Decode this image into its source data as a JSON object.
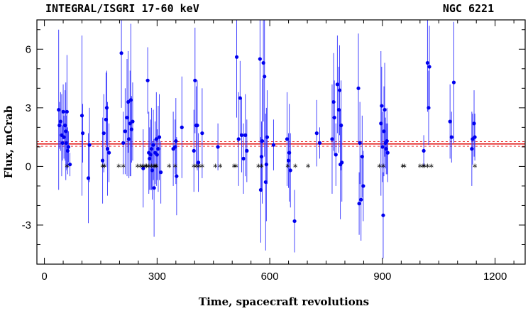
{
  "chart_data": {
    "type": "scatter",
    "title_left": "INTEGRAL/ISGRI 17-60 keV",
    "title_right": "NGC 6221",
    "xlabel": "Time, spacecraft revolutions",
    "ylabel": "Flux, mCrab",
    "xlim": [
      -20,
      1280
    ],
    "ylim": [
      -5,
      7.5
    ],
    "xticks": [
      0,
      300,
      600,
      900,
      1200
    ],
    "yticks": [
      -3,
      0,
      3,
      6
    ],
    "mean_flux": 1.15,
    "mean_flux_band": [
      1.03,
      1.27
    ],
    "colors": {
      "points": "#0000ee",
      "errorbars": "#3333ff",
      "mean_line": "#e00000",
      "markers": "#000000"
    },
    "series": [
      {
        "type": "errorbar",
        "points": [
          {
            "x": 38,
            "y": 2.9,
            "err": 4.1
          },
          {
            "x": 40,
            "y": 2.1,
            "err": 1.2
          },
          {
            "x": 43,
            "y": 2.3,
            "err": 1.5
          },
          {
            "x": 46,
            "y": 1.6,
            "err": 2.1
          },
          {
            "x": 48,
            "y": 1.2,
            "err": 0.9
          },
          {
            "x": 50,
            "y": 2.8,
            "err": 1.4
          },
          {
            "x": 52,
            "y": 1.5,
            "err": 1.1
          },
          {
            "x": 55,
            "y": 2.1,
            "err": 1.8
          },
          {
            "x": 57,
            "y": 1.8,
            "err": 2.5
          },
          {
            "x": 58,
            "y": 1.2,
            "err": 1.4
          },
          {
            "x": 60,
            "y": 2.8,
            "err": 2.9
          },
          {
            "x": 62,
            "y": 0.8,
            "err": 1.2
          },
          {
            "x": 64,
            "y": 1.0,
            "err": 0.8
          },
          {
            "x": 68,
            "y": 0.1,
            "err": 0.6
          },
          {
            "x": 100,
            "y": 2.6,
            "err": 4.1
          },
          {
            "x": 102,
            "y": 1.7,
            "err": 1.5
          },
          {
            "x": 117,
            "y": -0.6,
            "err": 2.3
          },
          {
            "x": 120,
            "y": 1.1,
            "err": 1.9
          },
          {
            "x": 155,
            "y": 0.3,
            "err": 2.2
          },
          {
            "x": 158,
            "y": 1.7,
            "err": 2.0
          },
          {
            "x": 164,
            "y": 2.4,
            "err": 2.4
          },
          {
            "x": 166,
            "y": 3.0,
            "err": 1.9
          },
          {
            "x": 168,
            "y": 0.9,
            "err": 2.4
          },
          {
            "x": 172,
            "y": 0.7,
            "err": 1.5
          },
          {
            "x": 205,
            "y": 5.8,
            "err": 2.8
          },
          {
            "x": 210,
            "y": 1.2,
            "err": 1.6
          },
          {
            "x": 215,
            "y": 1.8,
            "err": 2.2
          },
          {
            "x": 220,
            "y": 2.5,
            "err": 3.0
          },
          {
            "x": 223,
            "y": 3.3,
            "err": 2.6
          },
          {
            "x": 225,
            "y": 1.4,
            "err": 2.0
          },
          {
            "x": 228,
            "y": 2.2,
            "err": 2.7
          },
          {
            "x": 230,
            "y": 3.4,
            "err": 3.9
          },
          {
            "x": 232,
            "y": 1.9,
            "err": 1.7
          },
          {
            "x": 235,
            "y": 2.3,
            "err": 2.0
          },
          {
            "x": 263,
            "y": -0.1,
            "err": 2.0
          },
          {
            "x": 275,
            "y": 4.4,
            "err": 1.7
          },
          {
            "x": 278,
            "y": 0.7,
            "err": 2.1
          },
          {
            "x": 280,
            "y": 0.4,
            "err": 1.6
          },
          {
            "x": 283,
            "y": 0.6,
            "err": 1.8
          },
          {
            "x": 285,
            "y": 0.9,
            "err": 2.1
          },
          {
            "x": 287,
            "y": -0.2,
            "err": 1.5
          },
          {
            "x": 290,
            "y": 1.1,
            "err": 1.8
          },
          {
            "x": 292,
            "y": -1.1,
            "err": 2.5
          },
          {
            "x": 295,
            "y": 0.7,
            "err": 1.6
          },
          {
            "x": 298,
            "y": 1.4,
            "err": 2.4
          },
          {
            "x": 300,
            "y": 0.6,
            "err": 1.3
          },
          {
            "x": 303,
            "y": 0.9,
            "err": 2.2
          },
          {
            "x": 306,
            "y": 1.5,
            "err": 2.2
          },
          {
            "x": 310,
            "y": -0.3,
            "err": 1.6
          },
          {
            "x": 343,
            "y": 0.9,
            "err": 1.9
          },
          {
            "x": 348,
            "y": 1.0,
            "err": 1.4
          },
          {
            "x": 350,
            "y": 1.3,
            "err": 2.2
          },
          {
            "x": 352,
            "y": -0.5,
            "err": 2.0
          },
          {
            "x": 366,
            "y": 2.0,
            "err": 2.6
          },
          {
            "x": 398,
            "y": 0.8,
            "err": 2.1
          },
          {
            "x": 401,
            "y": 4.4,
            "err": 2.7
          },
          {
            "x": 404,
            "y": 2.1,
            "err": 2.0
          },
          {
            "x": 407,
            "y": 2.1,
            "err": 2.3
          },
          {
            "x": 410,
            "y": 0.2,
            "err": 1.5
          },
          {
            "x": 420,
            "y": 1.7,
            "err": 2.3
          },
          {
            "x": 462,
            "y": 1.0,
            "err": 1.2
          },
          {
            "x": 512,
            "y": 5.6,
            "err": 3.1
          },
          {
            "x": 517,
            "y": 1.4,
            "err": 2.4
          },
          {
            "x": 521,
            "y": 3.5,
            "err": 1.9
          },
          {
            "x": 525,
            "y": 1.6,
            "err": 1.9
          },
          {
            "x": 530,
            "y": 0.4,
            "err": 1.8
          },
          {
            "x": 535,
            "y": 1.6,
            "err": 2.1
          },
          {
            "x": 539,
            "y": 0.8,
            "err": 1.6
          },
          {
            "x": 574,
            "y": 5.5,
            "err": 4.3
          },
          {
            "x": 576,
            "y": -1.2,
            "err": 2.7
          },
          {
            "x": 578,
            "y": 0.5,
            "err": 1.8
          },
          {
            "x": 580,
            "y": 1.3,
            "err": 3.2
          },
          {
            "x": 583,
            "y": 5.3,
            "err": 3.0
          },
          {
            "x": 586,
            "y": 4.6,
            "err": 4.1
          },
          {
            "x": 589,
            "y": -0.8,
            "err": 3.5
          },
          {
            "x": 591,
            "y": 0.1,
            "err": 2.9
          },
          {
            "x": 593,
            "y": 1.5,
            "err": 2.4
          },
          {
            "x": 610,
            "y": 1.1,
            "err": 1.3
          },
          {
            "x": 646,
            "y": 1.4,
            "err": 2.4
          },
          {
            "x": 650,
            "y": 0.3,
            "err": 1.4
          },
          {
            "x": 652,
            "y": 0.7,
            "err": 2.5
          },
          {
            "x": 655,
            "y": -0.2,
            "err": 1.9
          },
          {
            "x": 666,
            "y": -2.8,
            "err": 1.6
          },
          {
            "x": 725,
            "y": 1.7,
            "err": 1.7
          },
          {
            "x": 733,
            "y": 1.2,
            "err": 0.8
          },
          {
            "x": 766,
            "y": 1.4,
            "err": 2.8
          },
          {
            "x": 770,
            "y": 3.3,
            "err": 2.5
          },
          {
            "x": 772,
            "y": 2.5,
            "err": 1.9
          },
          {
            "x": 776,
            "y": 0.6,
            "err": 1.6
          },
          {
            "x": 780,
            "y": 4.2,
            "err": 2.5
          },
          {
            "x": 784,
            "y": 2.9,
            "err": 2.2
          },
          {
            "x": 786,
            "y": 3.9,
            "err": 2.3
          },
          {
            "x": 788,
            "y": 0.1,
            "err": 2.8
          },
          {
            "x": 790,
            "y": 2.1,
            "err": 2.3
          },
          {
            "x": 792,
            "y": 0.2,
            "err": 2.0
          },
          {
            "x": 836,
            "y": 4.0,
            "err": 2.8
          },
          {
            "x": 838,
            "y": -1.9,
            "err": 1.6
          },
          {
            "x": 840,
            "y": 1.2,
            "err": 2.1
          },
          {
            "x": 843,
            "y": -1.7,
            "err": 2.1
          },
          {
            "x": 846,
            "y": 0.5,
            "err": 2.1
          },
          {
            "x": 849,
            "y": -1.0,
            "err": 1.8
          },
          {
            "x": 896,
            "y": 2.2,
            "err": 3.7
          },
          {
            "x": 898,
            "y": 3.1,
            "err": 2.0
          },
          {
            "x": 900,
            "y": 1.0,
            "err": 1.8
          },
          {
            "x": 902,
            "y": -2.5,
            "err": 2.2
          },
          {
            "x": 904,
            "y": 1.8,
            "err": 2.3
          },
          {
            "x": 906,
            "y": 2.9,
            "err": 2.4
          },
          {
            "x": 908,
            "y": 1.2,
            "err": 1.3
          },
          {
            "x": 910,
            "y": 0.9,
            "err": 1.3
          },
          {
            "x": 912,
            "y": 1.3,
            "err": 1.7
          },
          {
            "x": 914,
            "y": 0.7,
            "err": 1.5
          },
          {
            "x": 1010,
            "y": 0.8,
            "err": 0.8
          },
          {
            "x": 1020,
            "y": 5.3,
            "err": 2.5
          },
          {
            "x": 1023,
            "y": 3.0,
            "err": 1.9
          },
          {
            "x": 1025,
            "y": 5.1,
            "err": 2.1
          },
          {
            "x": 1080,
            "y": 2.3,
            "err": 1.9
          },
          {
            "x": 1084,
            "y": 1.5,
            "err": 1.3
          },
          {
            "x": 1090,
            "y": 4.3,
            "err": 3.1
          },
          {
            "x": 1138,
            "y": 0.9,
            "err": 1.9
          },
          {
            "x": 1140,
            "y": 1.4,
            "err": 1.3
          },
          {
            "x": 1144,
            "y": 2.2,
            "err": 1.7
          },
          {
            "x": 1146,
            "y": 1.5,
            "err": 1.2
          }
        ]
      },
      {
        "type": "markers",
        "marker": "*",
        "y": 0,
        "x": [
          60,
          155,
          160,
          198,
          210,
          248,
          256,
          262,
          268,
          272,
          278,
          285,
          292,
          295,
          298,
          332,
          348,
          398,
          405,
          412,
          420,
          455,
          468,
          505,
          510,
          570,
          578,
          648,
          668,
          702,
          892,
          902,
          954,
          958,
          1000,
          1008,
          1012,
          1020,
          1030,
          1146
        ]
      }
    ]
  }
}
